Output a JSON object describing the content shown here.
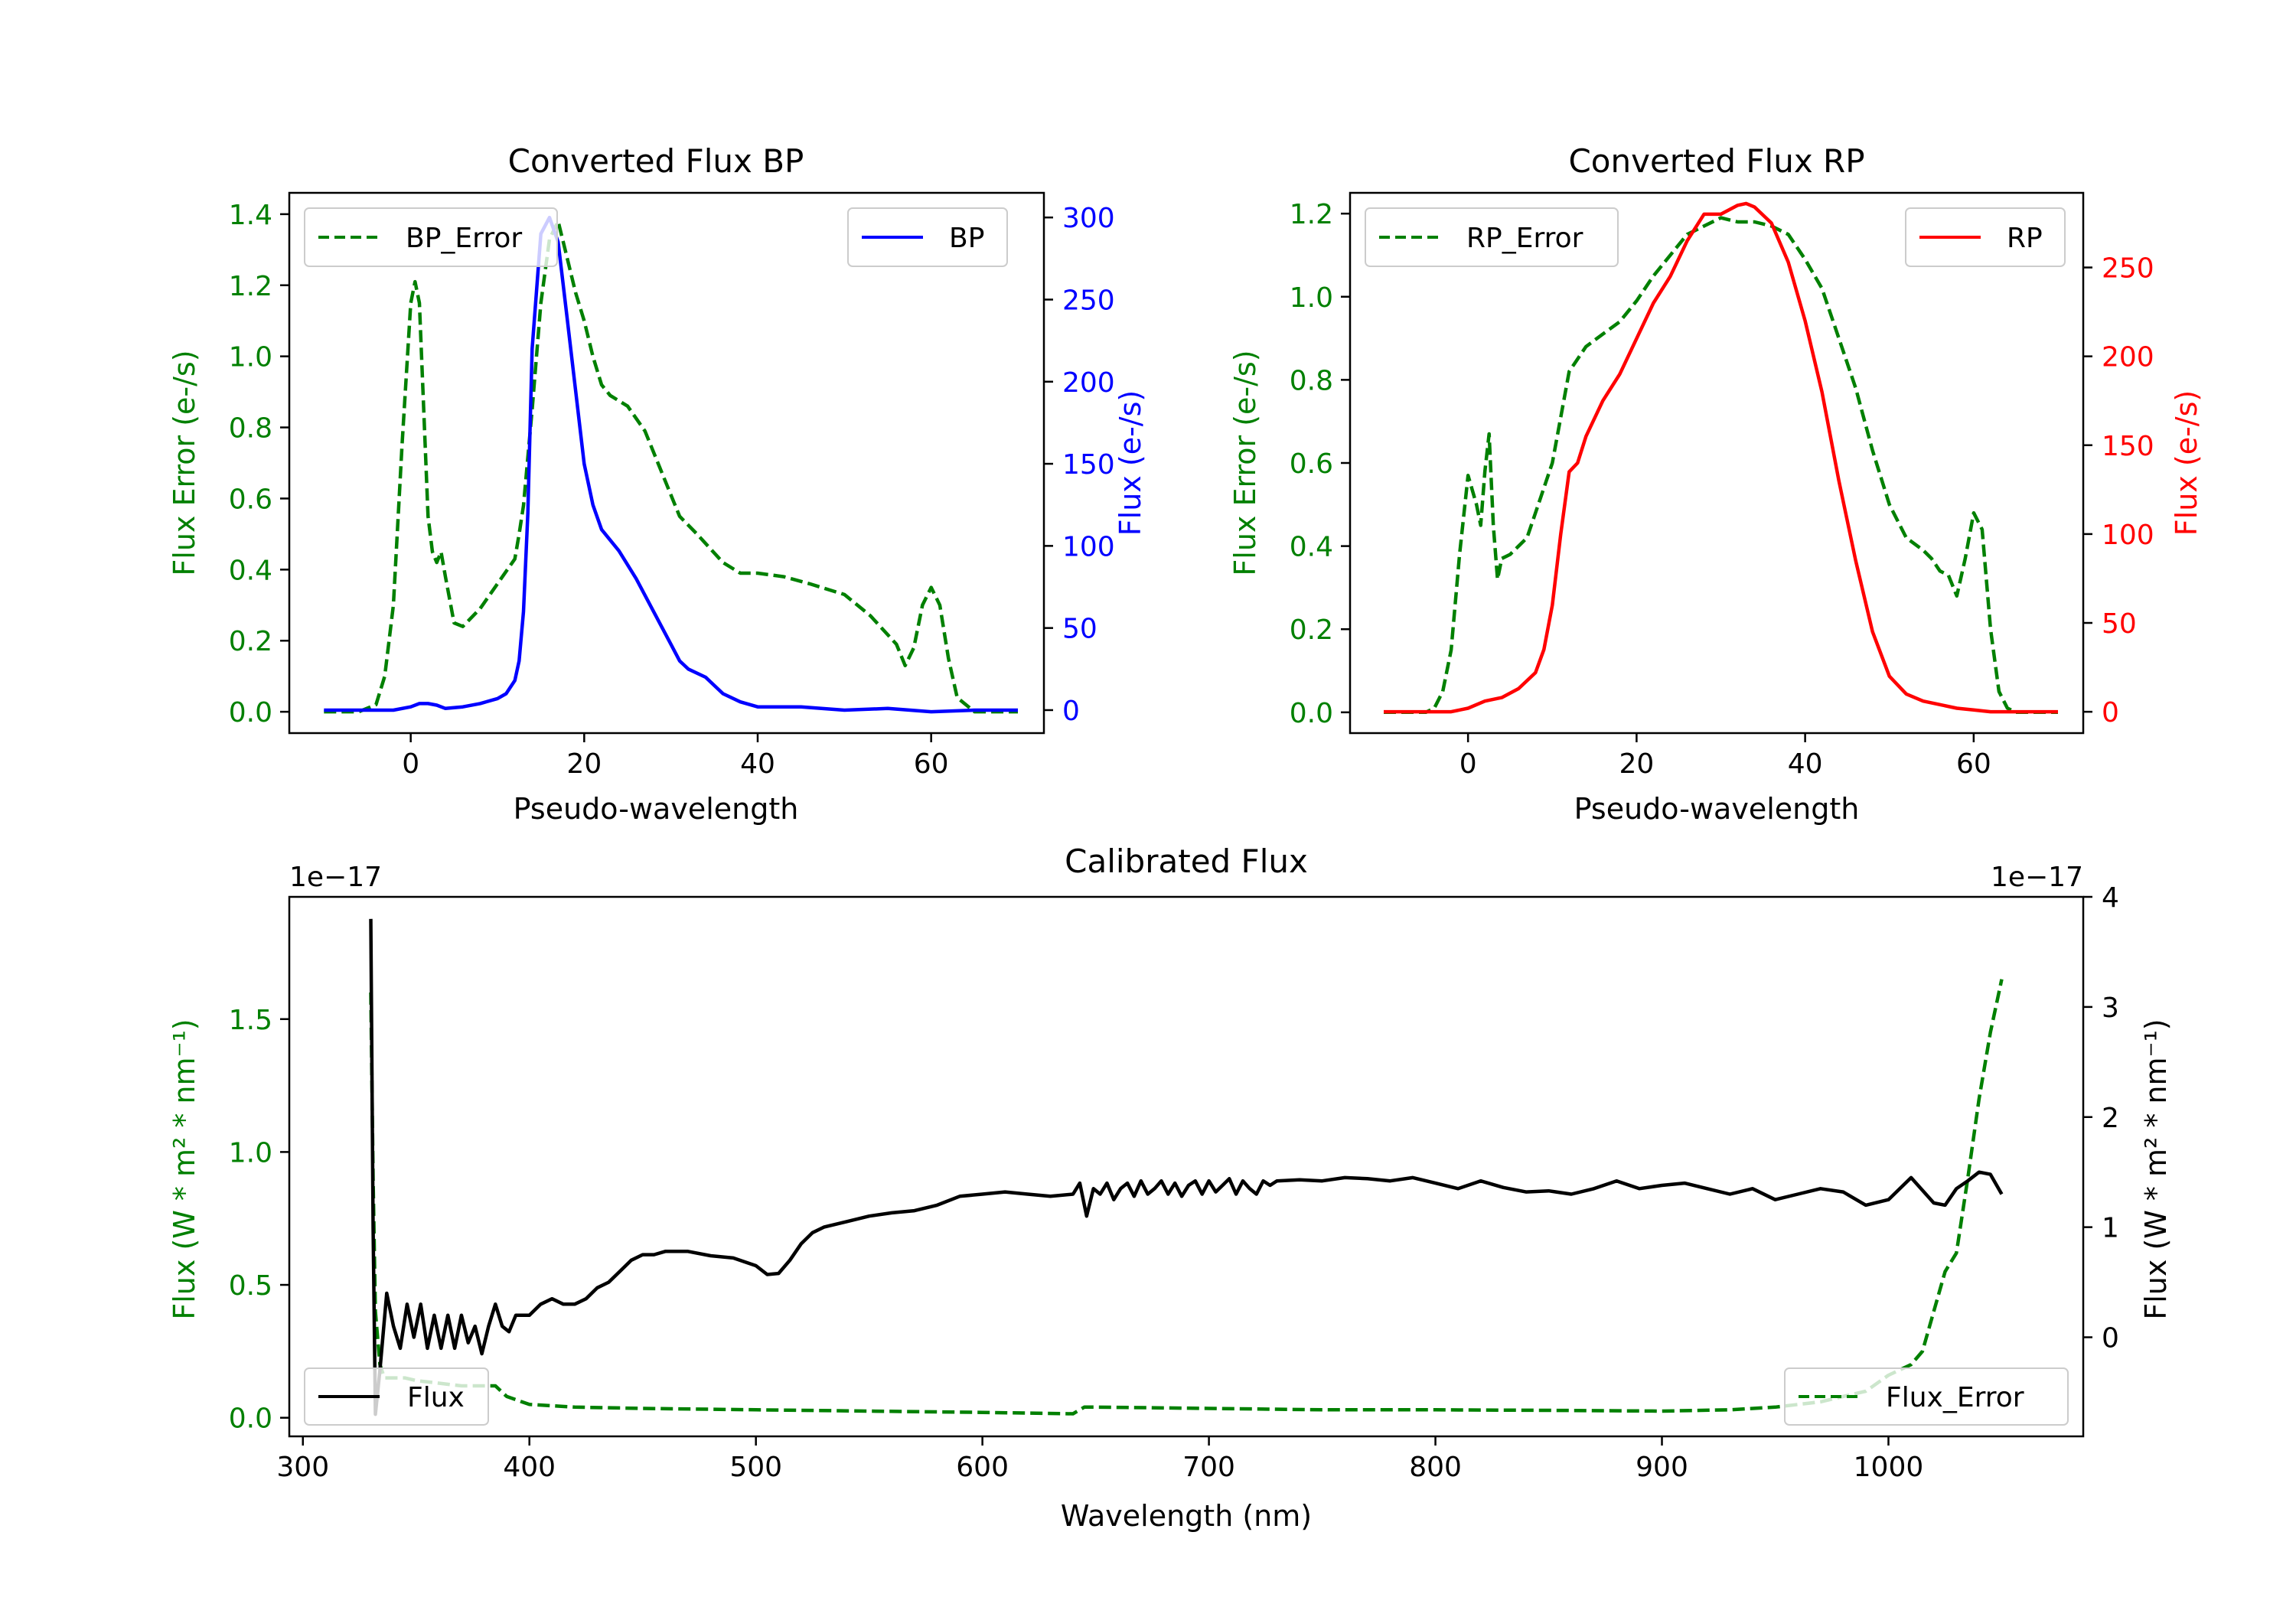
{
  "colors": {
    "bp": "#0000ff",
    "rp": "#ff0000",
    "error": "#008000",
    "flux": "#000000",
    "axis": "#000000"
  },
  "chart_data": [
    {
      "id": "bp",
      "type": "line",
      "title": "Converted Flux BP",
      "xlabel": "Pseudo-wavelength",
      "ylabel_left": "Flux Error (e-/s)",
      "ylabel_right": "Flux (e-/s)",
      "xlim": [
        -14,
        73
      ],
      "ylim_left": [
        -0.06,
        1.46
      ],
      "ylim_right": [
        -14,
        315
      ],
      "xticks": [
        0,
        20,
        40,
        60
      ],
      "xtick_labels": [
        "0",
        "20",
        "40",
        "60"
      ],
      "yticks_left": [
        0.0,
        0.2,
        0.4,
        0.6,
        0.8,
        1.0,
        1.2,
        1.4
      ],
      "ytick_labels_left": [
        "0.0",
        "0.2",
        "0.4",
        "0.6",
        "0.8",
        "1.0",
        "1.2",
        "1.4"
      ],
      "yticks_right": [
        0,
        50,
        100,
        150,
        200,
        250,
        300
      ],
      "ytick_labels_right": [
        "0",
        "50",
        "100",
        "150",
        "200",
        "250",
        "300"
      ],
      "legend_left": {
        "label": "BP_Error",
        "placement": "upper-left"
      },
      "legend_right": {
        "label": "BP",
        "placement": "upper-right"
      },
      "series": [
        {
          "name": "BP_Error",
          "axis": "left",
          "style": "dashed",
          "color_key": "error",
          "x": [
            -10,
            -6,
            -4,
            -3,
            -2,
            -1,
            0,
            0.5,
            1,
            2,
            2.5,
            3,
            3.5,
            4,
            5,
            6,
            8,
            10,
            12,
            12.5,
            13,
            14,
            15,
            16,
            17,
            18,
            19,
            20,
            21,
            22,
            23,
            25,
            27,
            29,
            31,
            33,
            36,
            38,
            40,
            43,
            46,
            50,
            53,
            56,
            57,
            58,
            59,
            60,
            61,
            62,
            63,
            65,
            70
          ],
          "y": [
            0.0,
            0.0,
            0.02,
            0.1,
            0.3,
            0.75,
            1.15,
            1.21,
            1.15,
            0.55,
            0.45,
            0.42,
            0.45,
            0.38,
            0.25,
            0.24,
            0.29,
            0.36,
            0.43,
            0.5,
            0.58,
            0.85,
            1.15,
            1.33,
            1.38,
            1.28,
            1.18,
            1.1,
            1.0,
            0.92,
            0.89,
            0.86,
            0.79,
            0.67,
            0.55,
            0.5,
            0.42,
            0.39,
            0.39,
            0.38,
            0.36,
            0.33,
            0.27,
            0.19,
            0.13,
            0.18,
            0.3,
            0.35,
            0.3,
            0.15,
            0.04,
            0.0,
            0.0
          ]
        },
        {
          "name": "BP",
          "axis": "right",
          "style": "solid",
          "color_key": "bp",
          "x": [
            -10,
            -2,
            0,
            1,
            2,
            3,
            4,
            6,
            8,
            10,
            11,
            12,
            12.5,
            13,
            13.5,
            14,
            15,
            16,
            17,
            18,
            19,
            20,
            21,
            22,
            24,
            26,
            28,
            30,
            31,
            32,
            34,
            35,
            36,
            38,
            40,
            45,
            50,
            55,
            60,
            65,
            70
          ],
          "y": [
            0,
            0,
            2,
            4,
            4,
            3,
            1,
            2,
            4,
            7,
            10,
            18,
            30,
            60,
            120,
            220,
            290,
            300,
            285,
            240,
            195,
            150,
            125,
            110,
            97,
            80,
            60,
            40,
            30,
            25,
            20,
            15,
            10,
            5,
            2,
            2,
            0,
            1,
            -1,
            0,
            0
          ]
        }
      ]
    },
    {
      "id": "rp",
      "type": "line",
      "title": "Converted Flux RP",
      "xlabel": "Pseudo-wavelength",
      "ylabel_left": "Flux Error (e-/s)",
      "ylabel_right": "Flux (e-/s)",
      "xlim": [
        -14,
        73
      ],
      "ylim_left": [
        -0.05,
        1.25
      ],
      "ylim_right": [
        -12,
        292
      ],
      "xticks": [
        0,
        20,
        40,
        60
      ],
      "xtick_labels": [
        "0",
        "20",
        "40",
        "60"
      ],
      "yticks_left": [
        0.0,
        0.2,
        0.4,
        0.6,
        0.8,
        1.0,
        1.2
      ],
      "ytick_labels_left": [
        "0.0",
        "0.2",
        "0.4",
        "0.6",
        "0.8",
        "1.0",
        "1.2"
      ],
      "yticks_right": [
        0,
        50,
        100,
        150,
        200,
        250
      ],
      "ytick_labels_right": [
        "0",
        "50",
        "100",
        "150",
        "200",
        "250"
      ],
      "legend_left": {
        "label": "RP_Error",
        "placement": "upper-left"
      },
      "legend_right": {
        "label": "RP",
        "placement": "upper-right"
      },
      "series": [
        {
          "name": "RP_Error",
          "axis": "left",
          "style": "dashed",
          "color_key": "error",
          "x": [
            -10,
            -5,
            -4,
            -3,
            -2,
            -1,
            0,
            1,
            1.5,
            2,
            2.5,
            3,
            3.5,
            4,
            5,
            6,
            7,
            8,
            10,
            12,
            14,
            16,
            18,
            20,
            22,
            24,
            26,
            28,
            30,
            32,
            34,
            36,
            38,
            40,
            42,
            44,
            46,
            48,
            50,
            52,
            54,
            55,
            56,
            57,
            58,
            59,
            60,
            61,
            62,
            63,
            64,
            65,
            70
          ],
          "y": [
            0.0,
            0.0,
            0.01,
            0.05,
            0.15,
            0.38,
            0.57,
            0.5,
            0.45,
            0.58,
            0.67,
            0.45,
            0.32,
            0.37,
            0.38,
            0.4,
            0.42,
            0.48,
            0.6,
            0.82,
            0.88,
            0.91,
            0.94,
            0.99,
            1.05,
            1.1,
            1.15,
            1.17,
            1.19,
            1.18,
            1.18,
            1.17,
            1.15,
            1.09,
            1.02,
            0.9,
            0.78,
            0.63,
            0.5,
            0.42,
            0.39,
            0.37,
            0.34,
            0.33,
            0.28,
            0.37,
            0.48,
            0.44,
            0.2,
            0.05,
            0.01,
            0.0,
            0.0
          ]
        },
        {
          "name": "RP",
          "axis": "right",
          "style": "solid",
          "color_key": "rp",
          "x": [
            -10,
            -2,
            0,
            2,
            4,
            6,
            8,
            9,
            10,
            11,
            12,
            13,
            14,
            16,
            18,
            20,
            22,
            24,
            26,
            28,
            30,
            32,
            33,
            34,
            36,
            38,
            40,
            42,
            44,
            46,
            48,
            50,
            52,
            54,
            56,
            58,
            60,
            62,
            65,
            70
          ],
          "y": [
            0,
            0,
            2,
            6,
            8,
            13,
            22,
            35,
            60,
            100,
            135,
            140,
            155,
            175,
            190,
            210,
            230,
            245,
            265,
            280,
            280,
            285,
            286,
            284,
            275,
            253,
            220,
            180,
            130,
            85,
            45,
            20,
            10,
            6,
            4,
            2,
            1,
            0,
            0,
            0
          ]
        }
      ]
    },
    {
      "id": "calibrated",
      "type": "line",
      "title": "Calibrated Flux",
      "xlabel": "Wavelength (nm)",
      "ylabel_left": "Flux (W * m² * nm⁻¹)",
      "ylabel_right": "Flux (W * m² * nm⁻¹)",
      "offset_left": "1e−17",
      "offset_right": "1e−17",
      "xlim": [
        294,
        1086
      ],
      "ylim_left": [
        -0.07,
        1.96
      ],
      "ylim_right": [
        -0.9,
        4.0
      ],
      "xticks": [
        300,
        400,
        500,
        600,
        700,
        800,
        900,
        1000
      ],
      "xtick_labels": [
        "300",
        "400",
        "500",
        "600",
        "700",
        "800",
        "900",
        "1000"
      ],
      "yticks_left": [
        0.0,
        0.5,
        1.0,
        1.5
      ],
      "ytick_labels_left": [
        "0.0",
        "0.5",
        "1.0",
        "1.5"
      ],
      "yticks_right": [
        0,
        1,
        2,
        3,
        4
      ],
      "ytick_labels_right": [
        "0",
        "1",
        "2",
        "3",
        "4"
      ],
      "legend_left": {
        "label": "Flux",
        "placement": "lower-left"
      },
      "legend_right": {
        "label": "Flux_Error",
        "placement": "lower-right"
      },
      "series": [
        {
          "name": "Flux_Error",
          "axis": "left",
          "style": "dashed",
          "color_key": "error",
          "x": [
            330,
            331,
            332,
            334,
            336,
            340,
            345,
            350,
            360,
            370,
            380,
            385,
            390,
            400,
            420,
            450,
            500,
            550,
            600,
            640,
            645,
            650,
            700,
            750,
            800,
            850,
            900,
            930,
            950,
            970,
            990,
            1000,
            1010,
            1015,
            1020,
            1025,
            1030,
            1035,
            1040,
            1045,
            1050
          ],
          "y": [
            1.6,
            0.9,
            0.4,
            0.2,
            0.15,
            0.15,
            0.15,
            0.14,
            0.13,
            0.12,
            0.12,
            0.12,
            0.08,
            0.05,
            0.04,
            0.035,
            0.03,
            0.025,
            0.02,
            0.015,
            0.04,
            0.04,
            0.035,
            0.03,
            0.03,
            0.028,
            0.025,
            0.03,
            0.04,
            0.06,
            0.1,
            0.16,
            0.2,
            0.25,
            0.4,
            0.55,
            0.62,
            0.9,
            1.2,
            1.45,
            1.65
          ]
        },
        {
          "name": "Flux",
          "axis": "right",
          "style": "solid",
          "color_key": "flux",
          "x": [
            330,
            331,
            332,
            334,
            337,
            340,
            343,
            346,
            349,
            352,
            355,
            358,
            361,
            364,
            367,
            370,
            373,
            376,
            379,
            382,
            385,
            388,
            391,
            394,
            397,
            400,
            405,
            410,
            415,
            420,
            425,
            430,
            435,
            440,
            445,
            450,
            455,
            460,
            470,
            480,
            490,
            500,
            505,
            510,
            515,
            520,
            525,
            530,
            540,
            550,
            560,
            570,
            580,
            590,
            600,
            610,
            620,
            630,
            640,
            643,
            646,
            649,
            652,
            655,
            658,
            661,
            664,
            667,
            670,
            673,
            676,
            679,
            682,
            685,
            688,
            691,
            694,
            697,
            700,
            703,
            706,
            709,
            712,
            715,
            718,
            721,
            724,
            727,
            730,
            740,
            750,
            760,
            770,
            780,
            790,
            800,
            810,
            820,
            830,
            840,
            850,
            860,
            870,
            880,
            890,
            900,
            910,
            920,
            930,
            940,
            950,
            960,
            970,
            980,
            990,
            1000,
            1010,
            1020,
            1025,
            1030,
            1035,
            1040,
            1045,
            1050
          ],
          "y": [
            3.8,
            1.0,
            -0.7,
            -0.3,
            0.4,
            0.1,
            -0.1,
            0.3,
            0.0,
            0.3,
            -0.1,
            0.2,
            -0.1,
            0.2,
            -0.1,
            0.2,
            -0.05,
            0.1,
            -0.15,
            0.1,
            0.3,
            0.1,
            0.05,
            0.2,
            0.2,
            0.2,
            0.3,
            0.35,
            0.3,
            0.3,
            0.35,
            0.45,
            0.5,
            0.6,
            0.7,
            0.75,
            0.75,
            0.78,
            0.78,
            0.74,
            0.72,
            0.65,
            0.57,
            0.58,
            0.7,
            0.85,
            0.95,
            1.0,
            1.05,
            1.1,
            1.13,
            1.15,
            1.2,
            1.28,
            1.3,
            1.32,
            1.3,
            1.28,
            1.3,
            1.4,
            1.1,
            1.35,
            1.3,
            1.4,
            1.25,
            1.35,
            1.4,
            1.28,
            1.42,
            1.3,
            1.35,
            1.42,
            1.3,
            1.4,
            1.28,
            1.38,
            1.42,
            1.3,
            1.42,
            1.32,
            1.38,
            1.44,
            1.3,
            1.42,
            1.35,
            1.3,
            1.42,
            1.38,
            1.42,
            1.43,
            1.42,
            1.45,
            1.44,
            1.42,
            1.45,
            1.4,
            1.35,
            1.42,
            1.36,
            1.32,
            1.33,
            1.3,
            1.35,
            1.42,
            1.35,
            1.38,
            1.4,
            1.35,
            1.3,
            1.35,
            1.25,
            1.3,
            1.35,
            1.32,
            1.2,
            1.25,
            1.45,
            1.22,
            1.2,
            1.35,
            1.42,
            1.5,
            1.48,
            1.3
          ]
        }
      ]
    }
  ]
}
